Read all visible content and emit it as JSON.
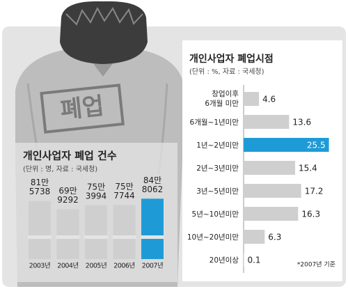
{
  "stamp": "폐업",
  "chart_data": [
    {
      "type": "bar",
      "title": "개인사업자 폐업 건수",
      "subtitle": "(단위 : 명, 자료 : 국세청)",
      "categories": [
        "2003년",
        "2004년",
        "2005년",
        "2006년",
        "2007년"
      ],
      "values": [
        815738,
        699292,
        753994,
        757744,
        848062
      ],
      "value_labels": [
        [
          "81만",
          "5738"
        ],
        [
          "69만",
          "9292"
        ],
        [
          "75만",
          "3994"
        ],
        [
          "75만",
          "7744"
        ],
        [
          "84만",
          "8062"
        ]
      ],
      "colors": [
        "#cfcfcf",
        "#cfcfcf",
        "#cfcfcf",
        "#cfcfcf",
        "#1e9bd7"
      ],
      "ylim": [
        0,
        900000
      ]
    },
    {
      "type": "hbar",
      "title": "개인사업자 폐업시점",
      "subtitle": "(단위 : %, 자료 : 국세청)",
      "categories": [
        [
          "창업이후",
          "6개월 미만"
        ],
        "6개월~1년미만",
        "1년~2년미만",
        "2년~3년미만",
        "3년~5년미만",
        "5년~10년미만",
        "10년~20년미만",
        "20년이상"
      ],
      "values": [
        4.6,
        13.6,
        25.5,
        15.4,
        17.2,
        16.3,
        6.3,
        0.1
      ],
      "colors": [
        "#cfcfcf",
        "#cfcfcf",
        "#1e9bd7",
        "#cfcfcf",
        "#cfcfcf",
        "#cfcfcf",
        "#cfcfcf",
        "#cfcfcf"
      ],
      "xlim": [
        0,
        26
      ],
      "note": "*2007년 기준"
    }
  ]
}
